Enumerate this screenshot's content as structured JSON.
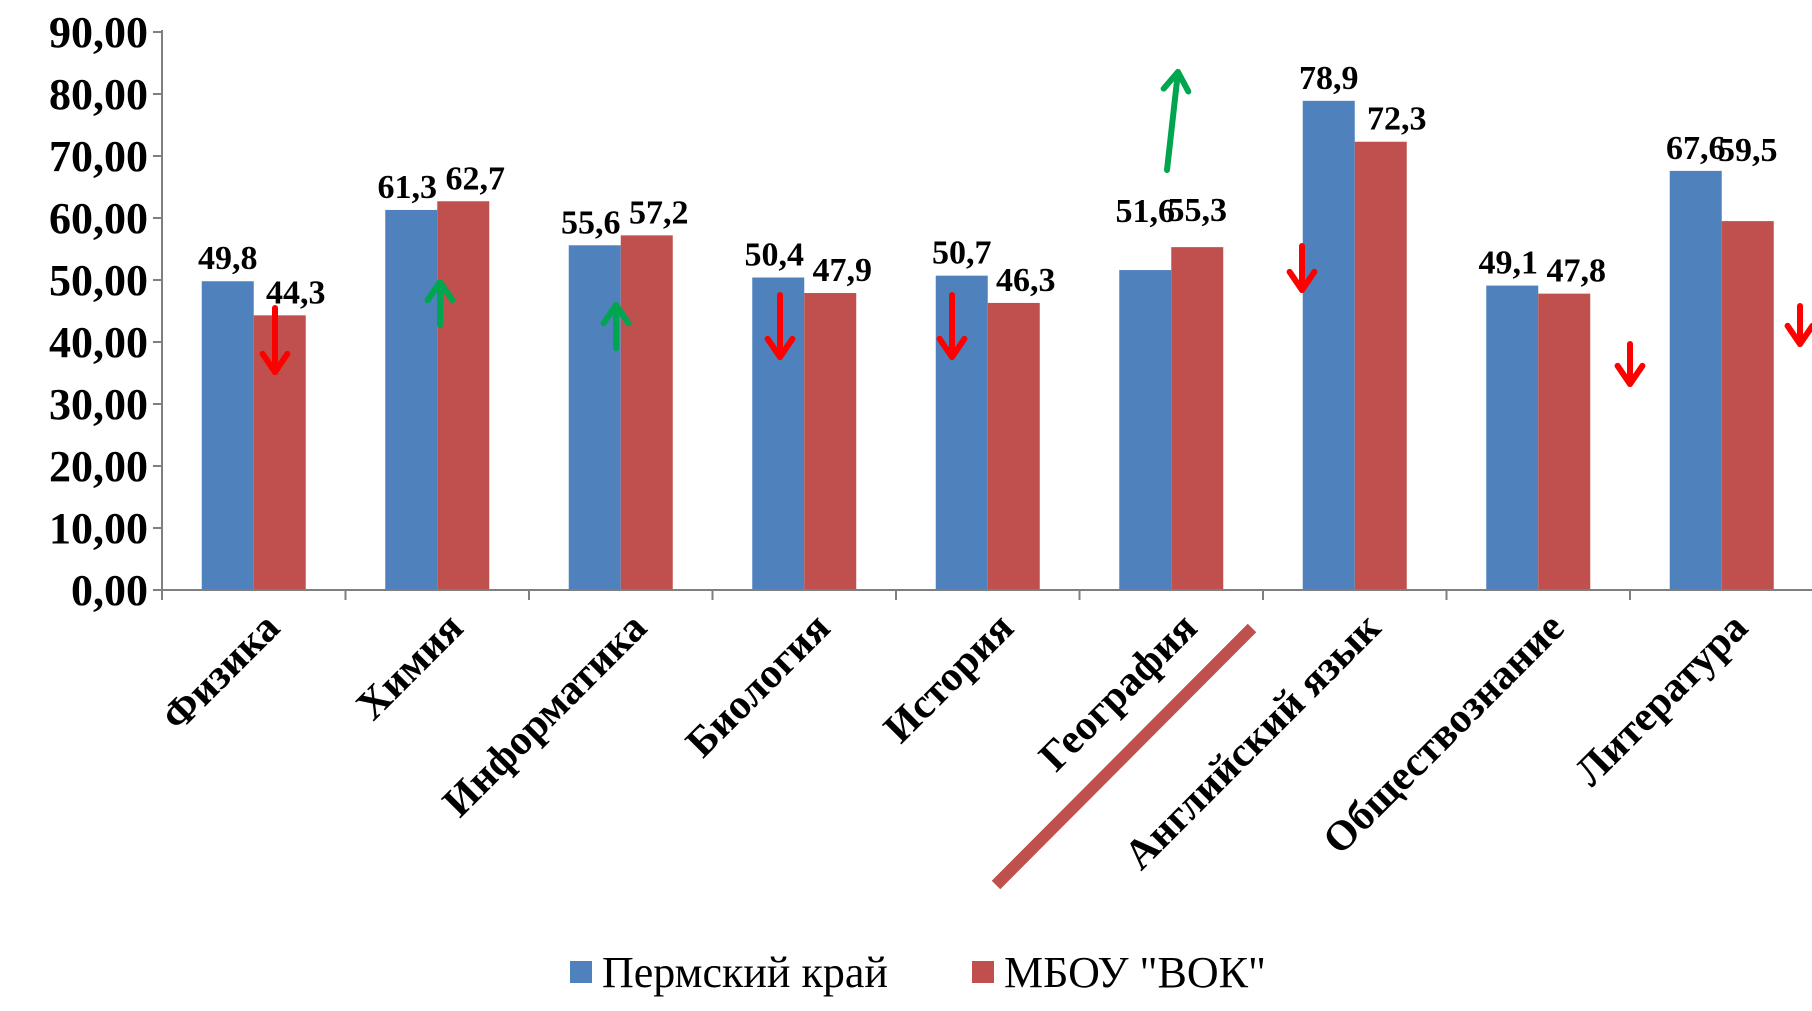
{
  "chart_data": {
    "type": "bar",
    "categories": [
      "Физика",
      "Химия",
      "Информатика",
      "Биология",
      "История",
      "География",
      "Английский язык",
      "Обществознание",
      "Литература"
    ],
    "series": [
      {
        "name": "Пермский край",
        "color": "#4F81BD",
        "values": [
          49.8,
          61.3,
          55.6,
          50.4,
          50.7,
          51.6,
          78.9,
          49.1,
          67.6
        ],
        "labels": [
          "49,8",
          "61,3",
          "55,6",
          "50,4",
          "50,7",
          "51,6",
          "78,9",
          "49,1",
          "67,6"
        ]
      },
      {
        "name": "МБОУ \"ВОК\"",
        "color": "#C0504D",
        "values": [
          44.3,
          62.7,
          57.2,
          47.9,
          46.3,
          55.3,
          72.3,
          47.8,
          59.5
        ],
        "labels": [
          "44,3",
          "62,7",
          "57,2",
          "47,9",
          "46,3",
          "55,3",
          "72,3",
          "47,8",
          "59,5"
        ]
      }
    ],
    "ylim": [
      0,
      90
    ],
    "yticks": [
      0,
      10,
      20,
      30,
      40,
      50,
      60,
      70,
      80,
      90
    ],
    "ytick_labels": [
      "0,00",
      "10,00",
      "20,00",
      "30,00",
      "40,00",
      "50,00",
      "60,00",
      "70,00",
      "80,00",
      "90,00"
    ],
    "legend_position": "bottom",
    "grid": false,
    "annotations": {
      "trend_arrows": [
        {
          "category": "Физика",
          "direction": "down",
          "color": "#FF0000"
        },
        {
          "category": "Химия",
          "direction": "up",
          "color": "#00A550"
        },
        {
          "category": "Информатика",
          "direction": "up",
          "color": "#00A550"
        },
        {
          "category": "Биология",
          "direction": "down",
          "color": "#FF0000"
        },
        {
          "category": "История",
          "direction": "down",
          "color": "#FF0000"
        },
        {
          "category": "География",
          "direction": "up",
          "color": "#00A550"
        },
        {
          "category": "Английский язык",
          "direction": "down",
          "color": "#FF0000"
        },
        {
          "category": "Обществознание",
          "direction": "down",
          "color": "#FF0000"
        },
        {
          "category": "Литература",
          "direction": "down",
          "color": "#FF0000"
        }
      ],
      "strike_line_color": "#C0504D"
    }
  }
}
